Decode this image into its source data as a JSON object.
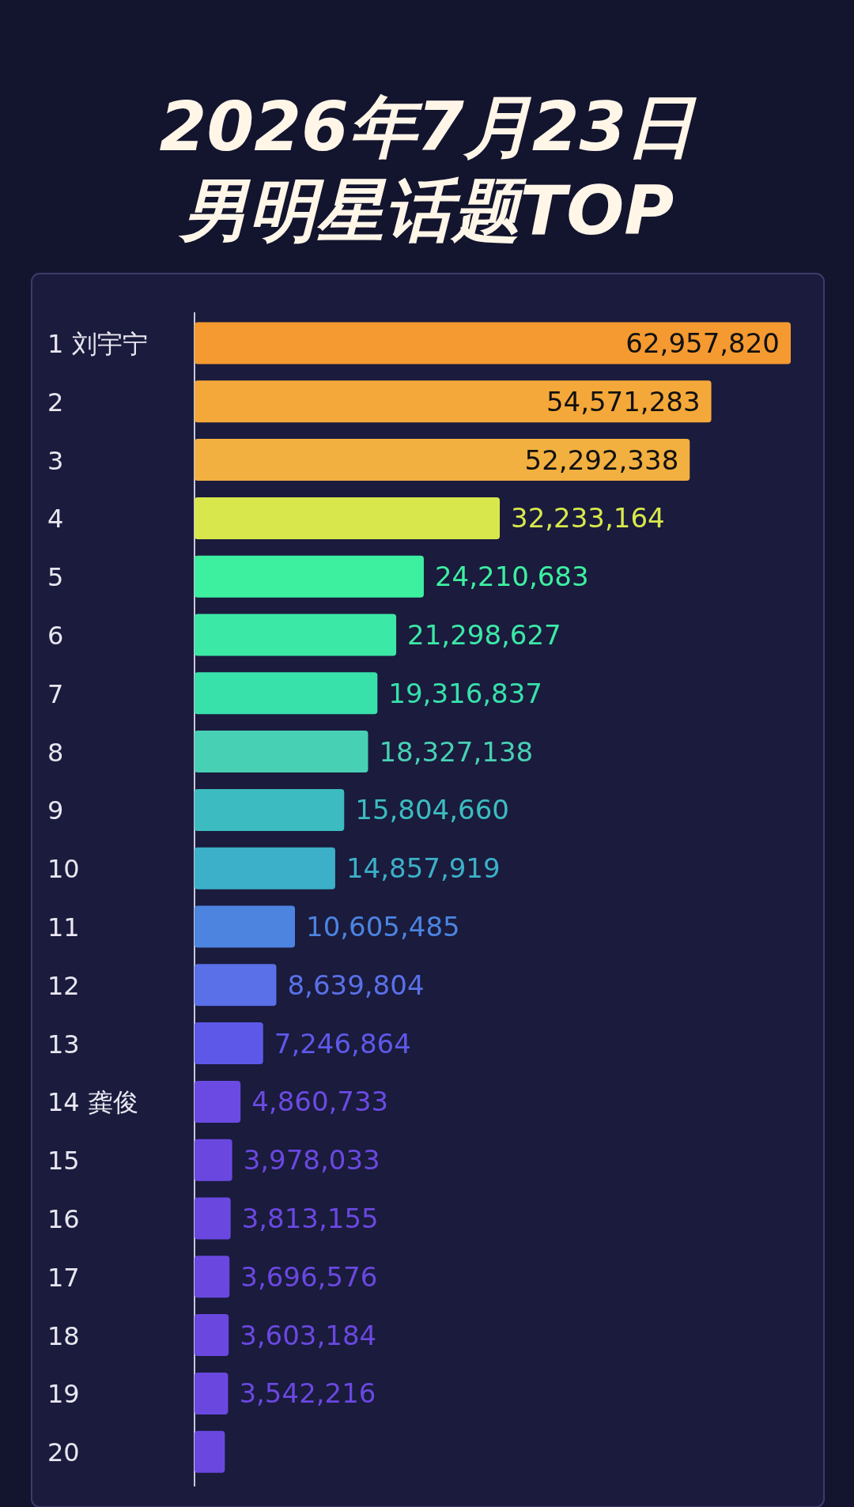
{
  "chart_data": {
    "type": "bar",
    "orientation": "horizontal",
    "title": "2026年7月23日",
    "subtitle": "男明星话题TOP",
    "categories": [
      "1 刘宇宁",
      "2",
      "3",
      "4",
      "5",
      "6",
      "7",
      "8",
      "9",
      "10",
      "11",
      "12",
      "13",
      "14 龚俊",
      "15",
      "16",
      "17",
      "18",
      "19",
      "20"
    ],
    "values": [
      62957820,
      54571283,
      52292338,
      32233164,
      24210683,
      21298627,
      19316837,
      18327138,
      15804660,
      14857919,
      10605485,
      8639804,
      7246864,
      4860733,
      3978033,
      3813155,
      3696576,
      3603184,
      3542216,
      3200000
    ],
    "value_labels": [
      "62,957,820",
      "54,571,283",
      "52,292,338",
      "32,233,164",
      "24,210,683",
      "21,298,627",
      "19,316,837",
      "18,327,138",
      "15,804,660",
      "14,857,919",
      "10,605,485",
      "8,639,804",
      "7,246,864",
      "4,860,733",
      "3,978,033",
      "3,813,155",
      "3,696,576",
      "3,603,184",
      "3,542,216",
      null
    ],
    "colors": [
      "#f59a30",
      "#f5a83a",
      "#f2b040",
      "#d8e84c",
      "#3cf0a0",
      "#3ce8a6",
      "#38e0aa",
      "#48d0b4",
      "#3cbcc0",
      "#3cb0c8",
      "#4c84e0",
      "#5a70e8",
      "#5e58e8",
      "#6a4ae2",
      "#6a48e0",
      "#6a48e0",
      "#6a48e0",
      "#6a48e0",
      "#6a48e0",
      "#6a48e0"
    ]
  }
}
